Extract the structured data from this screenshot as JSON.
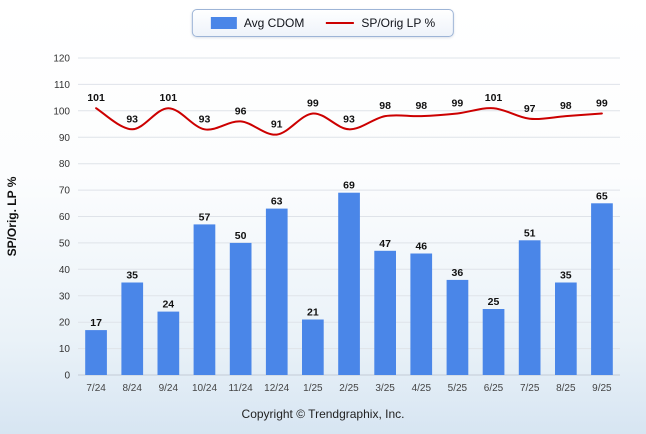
{
  "legend": {
    "bar_label": "Avg CDOM",
    "line_label": "SP/Orig LP %"
  },
  "footer": {
    "copyright": "Copyright © Trendgraphix, Inc."
  },
  "chart_data": {
    "type": "bar",
    "subtype": "bar+line combo",
    "categories": [
      "7/24",
      "8/24",
      "9/24",
      "10/24",
      "11/24",
      "12/24",
      "1/25",
      "2/25",
      "3/25",
      "4/25",
      "5/25",
      "6/25",
      "7/25",
      "8/25",
      "9/25"
    ],
    "series": [
      {
        "name": "Avg CDOM",
        "kind": "bar",
        "color": "#4a86e8",
        "values": [
          17,
          35,
          24,
          57,
          50,
          63,
          21,
          69,
          47,
          46,
          36,
          25,
          51,
          35,
          65
        ]
      },
      {
        "name": "SP/Orig LP %",
        "kind": "line",
        "color": "#cc0000",
        "values": [
          101,
          93,
          101,
          93,
          96,
          91,
          99,
          93,
          98,
          98,
          99,
          101,
          97,
          98,
          99
        ]
      }
    ],
    "title": "",
    "xlabel": "",
    "ylabel": "SP/Orig. LP %",
    "ylim": [
      0,
      120
    ],
    "ytick_step": 10,
    "grid": true,
    "legend_position": "top"
  }
}
